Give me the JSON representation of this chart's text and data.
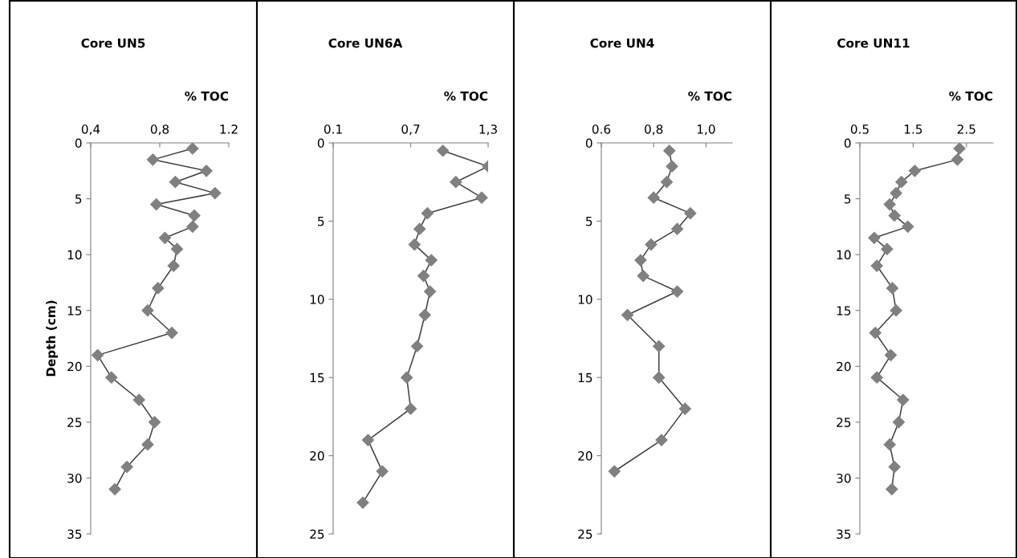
{
  "chart_data": [
    {
      "type": "line",
      "title": "Core UN5",
      "xlabel": "% TOC",
      "ylabel": "Depth (cm)",
      "marker": "diamond",
      "line_style": "solid",
      "grid": false,
      "xlim": [
        0.4,
        1.2
      ],
      "xticks": [
        {
          "value": 0.4,
          "label": "0,4"
        },
        {
          "value": 0.8,
          "label": "0,8"
        },
        1.2
      ],
      "ylim": [
        35,
        0
      ],
      "yticks": [
        0,
        5,
        10,
        15,
        20,
        25,
        30,
        35
      ],
      "series": [
        {
          "color": "#808080",
          "x": [
            0.99,
            0.76,
            1.07,
            0.89,
            1.12,
            0.78,
            1.0,
            0.99,
            0.83,
            0.9,
            0.88,
            0.79,
            0.73,
            0.87,
            0.44,
            0.52,
            0.68,
            0.77,
            0.73,
            0.61,
            0.54
          ],
          "values": [
            0.5,
            1.5,
            2.5,
            3.5,
            4.5,
            5.5,
            6.5,
            7.5,
            8.5,
            9.5,
            11,
            13,
            15,
            17,
            19,
            21,
            23,
            25,
            27,
            29,
            31
          ]
        }
      ]
    },
    {
      "type": "line",
      "title": "Core UN6A",
      "xlabel": "% TOC",
      "marker": "diamond",
      "line_style": "solid",
      "grid": false,
      "xlim": [
        0.1,
        1.3
      ],
      "xticks": [
        0.1,
        {
          "value": 0.7,
          "label": "0,7"
        },
        {
          "value": 1.3,
          "label": "1,3"
        }
      ],
      "ylim": [
        25,
        0
      ],
      "yticks": [
        0,
        5,
        10,
        15,
        20,
        25
      ],
      "series": [
        {
          "color": "#808080",
          "x": [
            0.95,
            1.3,
            1.05,
            1.25,
            0.83,
            0.77,
            0.73,
            0.86,
            0.8,
            0.85,
            0.81,
            0.75,
            0.67,
            0.7,
            0.37,
            0.48,
            0.33
          ],
          "values": [
            0.5,
            1.5,
            2.5,
            3.5,
            4.5,
            5.5,
            6.5,
            7.5,
            8.5,
            9.5,
            11,
            13,
            15,
            17,
            19,
            21,
            23
          ]
        }
      ]
    },
    {
      "type": "line",
      "title": "Core UN4",
      "xlabel": "% TOC",
      "marker": "diamond",
      "line_style": "solid",
      "grid": false,
      "xlim": [
        0.6,
        1.1
      ],
      "xticks": [
        0.6,
        {
          "value": 0.8,
          "label": "0,8"
        },
        {
          "value": 1.0,
          "label": "1,0"
        }
      ],
      "ylim": [
        25,
        0
      ],
      "yticks": [
        0,
        5,
        10,
        15,
        20,
        25
      ],
      "series": [
        {
          "color": "#808080",
          "x": [
            0.86,
            0.87,
            0.85,
            0.8,
            0.94,
            0.89,
            0.79,
            0.75,
            0.76,
            0.89,
            0.7,
            0.82,
            0.82,
            0.92,
            0.83,
            0.65
          ],
          "values": [
            0.5,
            1.5,
            2.5,
            3.5,
            4.5,
            5.5,
            6.5,
            7.5,
            8.5,
            9.5,
            11,
            13,
            15,
            17,
            19,
            21
          ]
        }
      ]
    },
    {
      "type": "line",
      "title": "Core UN11",
      "xlabel": "% TOC",
      "marker": "diamond",
      "line_style": "solid",
      "grid": false,
      "xlim": [
        0.5,
        3.0
      ],
      "xticks": [
        0.5,
        1.5,
        2.5
      ],
      "ylim": [
        35,
        0
      ],
      "yticks": [
        0,
        5,
        10,
        15,
        20,
        25,
        30,
        35
      ],
      "series": [
        {
          "color": "#808080",
          "x": [
            2.37,
            2.33,
            1.53,
            1.28,
            1.18,
            1.06,
            1.15,
            1.4,
            0.77,
            1.01,
            0.82,
            1.11,
            1.18,
            0.79,
            1.08,
            0.82,
            1.31,
            1.23,
            1.06,
            1.15,
            1.1
          ],
          "values": [
            0.5,
            1.5,
            2.5,
            3.5,
            4.5,
            5.5,
            6.5,
            7.5,
            8.5,
            9.5,
            11,
            13,
            15,
            17,
            19,
            21,
            23,
            25,
            27,
            29,
            31
          ]
        }
      ]
    }
  ]
}
